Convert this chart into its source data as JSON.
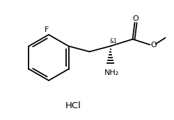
{
  "bg_color": "#ffffff",
  "line_color": "#000000",
  "line_width": 1.3,
  "font_size_label": 8.0,
  "font_size_stereo": 5.5,
  "font_size_hcl": 9.5,
  "hcl_text": "HCl",
  "stereo_label": "&1",
  "nh2_label": "NH₂",
  "o_label": "O",
  "f_label": "F",
  "fig_width": 2.5,
  "fig_height": 1.73,
  "dpi": 100
}
